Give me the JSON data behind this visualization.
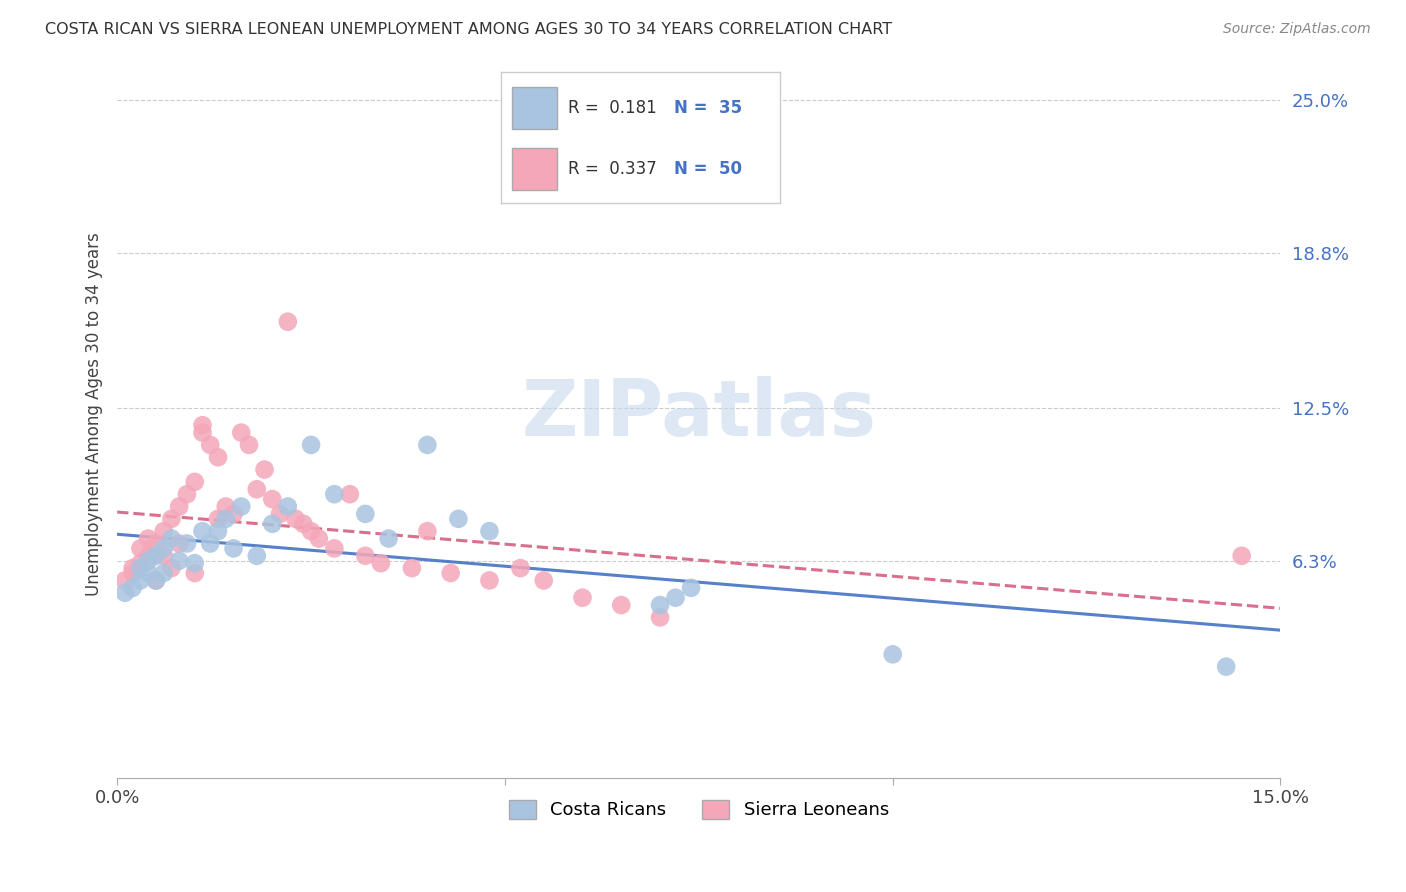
{
  "title": "COSTA RICAN VS SIERRA LEONEAN UNEMPLOYMENT AMONG AGES 30 TO 34 YEARS CORRELATION CHART",
  "source": "Source: ZipAtlas.com",
  "ylabel": "Unemployment Among Ages 30 to 34 years",
  "xlim": [
    0.0,
    0.15
  ],
  "ylim": [
    -0.025,
    0.27
  ],
  "xticks": [
    0.0,
    0.05,
    0.1,
    0.15
  ],
  "xtick_labels": [
    "0.0%",
    "",
    "",
    "15.0%"
  ],
  "ytick_labels_right": [
    "25.0%",
    "18.8%",
    "12.5%",
    "6.3%"
  ],
  "ytick_positions_right": [
    0.25,
    0.188,
    0.125,
    0.063
  ],
  "costa_rican_color": "#a8c4e0",
  "sierra_leonean_color": "#f4a7b9",
  "trend_costa_color": "#4472c4",
  "trend_sierra_color": "#d46080",
  "watermark": "ZIPatlas",
  "cr_x": [
    0.001,
    0.002,
    0.003,
    0.003,
    0.004,
    0.004,
    0.005,
    0.005,
    0.006,
    0.006,
    0.007,
    0.008,
    0.009,
    0.01,
    0.011,
    0.012,
    0.013,
    0.014,
    0.015,
    0.016,
    0.018,
    0.02,
    0.022,
    0.025,
    0.028,
    0.032,
    0.035,
    0.04,
    0.044,
    0.048,
    0.07,
    0.072,
    0.074,
    0.1,
    0.143
  ],
  "cr_y": [
    0.05,
    0.052,
    0.055,
    0.06,
    0.058,
    0.063,
    0.055,
    0.065,
    0.058,
    0.068,
    0.072,
    0.063,
    0.07,
    0.062,
    0.075,
    0.07,
    0.075,
    0.08,
    0.068,
    0.085,
    0.065,
    0.078,
    0.085,
    0.11,
    0.09,
    0.082,
    0.072,
    0.11,
    0.08,
    0.075,
    0.045,
    0.048,
    0.052,
    0.025,
    0.02
  ],
  "sl_x": [
    0.001,
    0.002,
    0.002,
    0.003,
    0.003,
    0.004,
    0.004,
    0.005,
    0.005,
    0.006,
    0.006,
    0.007,
    0.007,
    0.008,
    0.008,
    0.009,
    0.01,
    0.01,
    0.011,
    0.011,
    0.012,
    0.013,
    0.013,
    0.014,
    0.015,
    0.016,
    0.017,
    0.018,
    0.019,
    0.02,
    0.021,
    0.022,
    0.023,
    0.024,
    0.025,
    0.026,
    0.028,
    0.03,
    0.032,
    0.034,
    0.038,
    0.04,
    0.043,
    0.048,
    0.052,
    0.055,
    0.06,
    0.065,
    0.07,
    0.145
  ],
  "sl_y": [
    0.055,
    0.06,
    0.058,
    0.062,
    0.068,
    0.065,
    0.072,
    0.055,
    0.07,
    0.065,
    0.075,
    0.06,
    0.08,
    0.07,
    0.085,
    0.09,
    0.058,
    0.095,
    0.115,
    0.118,
    0.11,
    0.08,
    0.105,
    0.085,
    0.082,
    0.115,
    0.11,
    0.092,
    0.1,
    0.088,
    0.082,
    0.16,
    0.08,
    0.078,
    0.075,
    0.072,
    0.068,
    0.09,
    0.065,
    0.062,
    0.06,
    0.075,
    0.058,
    0.055,
    0.06,
    0.055,
    0.048,
    0.045,
    0.04,
    0.065
  ]
}
